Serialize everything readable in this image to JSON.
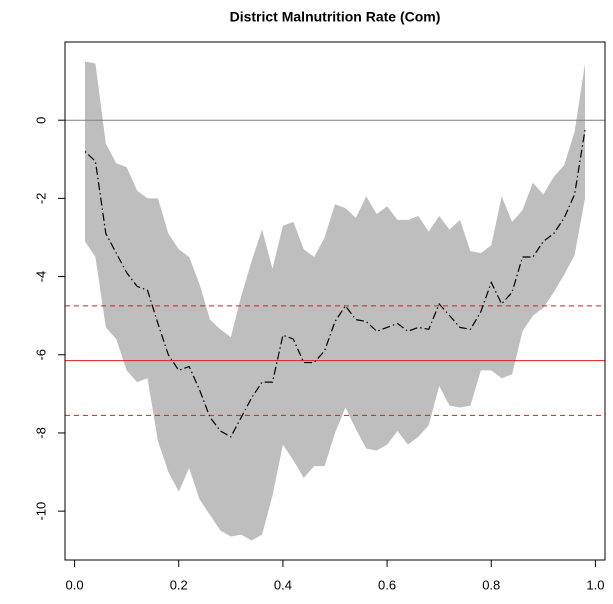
{
  "chart_data": {
    "type": "line",
    "title": "District Malnutrition Rate (Com)",
    "x": [
      0.02,
      0.04,
      0.06,
      0.08,
      0.1,
      0.12,
      0.14,
      0.16,
      0.18,
      0.2,
      0.22,
      0.24,
      0.26,
      0.28,
      0.3,
      0.32,
      0.34,
      0.36,
      0.38,
      0.4,
      0.42,
      0.44,
      0.46,
      0.48,
      0.5,
      0.52,
      0.54,
      0.56,
      0.58,
      0.6,
      0.62,
      0.64,
      0.66,
      0.68,
      0.7,
      0.72,
      0.74,
      0.76,
      0.78,
      0.8,
      0.82,
      0.84,
      0.86,
      0.88,
      0.9,
      0.92,
      0.94,
      0.96,
      0.98
    ],
    "series": [
      {
        "color": "#000000",
        "values": [
          -0.8,
          -1.05,
          -2.9,
          -3.4,
          -3.9,
          -4.25,
          -4.35,
          -5.2,
          -6.0,
          -6.4,
          -6.3,
          -6.9,
          -7.6,
          -7.95,
          -8.1,
          -7.6,
          -7.1,
          -6.7,
          -6.7,
          -5.5,
          -5.6,
          -6.2,
          -6.2,
          -5.9,
          -5.15,
          -4.75,
          -5.1,
          -5.15,
          -5.4,
          -5.3,
          -5.2,
          -5.4,
          -5.3,
          -5.35,
          -4.7,
          -5.0,
          -5.3,
          -5.35,
          -4.9,
          -4.15,
          -4.7,
          -4.4,
          -3.5,
          -3.5,
          -3.1,
          -2.9,
          -2.5,
          -1.9,
          -0.25
        ]
      }
    ],
    "band": {
      "color": "#bebebe",
      "upper": [
        1.5,
        1.45,
        -0.6,
        -1.1,
        -1.2,
        -1.8,
        -2.0,
        -2.0,
        -2.9,
        -3.3,
        -3.5,
        -4.2,
        -5.1,
        -5.35,
        -5.55,
        -4.5,
        -3.6,
        -2.8,
        -3.8,
        -2.7,
        -2.6,
        -3.3,
        -3.5,
        -3.0,
        -2.15,
        -2.25,
        -2.5,
        -1.95,
        -2.4,
        -2.2,
        -2.55,
        -2.55,
        -2.45,
        -2.85,
        -2.45,
        -2.8,
        -2.55,
        -3.35,
        -3.4,
        -3.2,
        -1.95,
        -2.6,
        -2.3,
        -1.6,
        -1.9,
        -1.45,
        -1.15,
        -0.3,
        1.45
      ],
      "lower": [
        -3.1,
        -3.5,
        -5.3,
        -5.6,
        -6.4,
        -6.7,
        -6.6,
        -8.2,
        -9.0,
        -9.5,
        -8.9,
        -9.7,
        -10.1,
        -10.5,
        -10.65,
        -10.6,
        -10.75,
        -10.6,
        -9.6,
        -8.3,
        -8.7,
        -9.15,
        -8.85,
        -8.85,
        -8.0,
        -7.35,
        -7.9,
        -8.4,
        -8.45,
        -8.3,
        -7.95,
        -8.3,
        -8.1,
        -7.8,
        -6.8,
        -7.3,
        -7.35,
        -7.3,
        -6.4,
        -6.4,
        -6.6,
        -6.5,
        -5.4,
        -5.0,
        -4.8,
        -4.4,
        -3.95,
        -3.45,
        -2.0
      ]
    },
    "hlines": [
      {
        "value": 0,
        "color": "#808080",
        "style": "solid"
      },
      {
        "value": -4.75,
        "color": "#e31a1c",
        "style": "dashed"
      },
      {
        "value": -6.15,
        "color": "#e31a1c",
        "style": "solid"
      },
      {
        "value": -7.55,
        "color": "#e31a1c",
        "style": "dashed"
      }
    ],
    "xlim": [
      -0.0184,
      1.0184
    ],
    "ylim": [
      -11.25,
      2.0
    ],
    "xticks": [
      {
        "value": 0,
        "label": "0.0"
      },
      0.2,
      0.4,
      0.6,
      0.8,
      {
        "value": 1,
        "label": "1.0"
      }
    ],
    "yticks": [
      -10,
      -8,
      -6,
      -4,
      -2,
      0
    ]
  }
}
